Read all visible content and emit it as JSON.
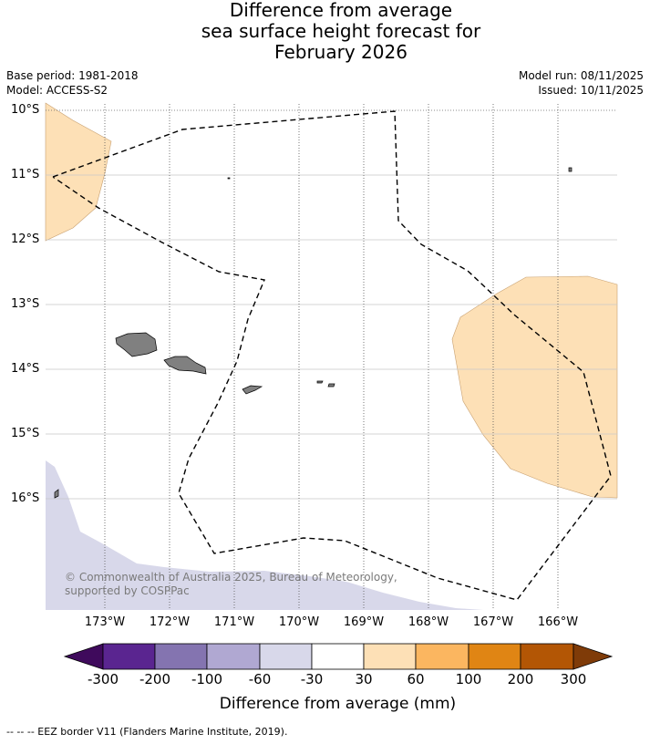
{
  "title": {
    "line1": "Difference from average",
    "line2": "sea surface height forecast for",
    "line3": "February 2026"
  },
  "meta": {
    "base_period": "Base period: 1981-2018",
    "model": "Model: ACCESS-S2",
    "model_run": "Model run: 08/11/2025",
    "issued": "Issued: 10/11/2025"
  },
  "map": {
    "lat_labels": [
      "10°S",
      "11°S",
      "12°S",
      "13°S",
      "14°S",
      "15°S",
      "16°S"
    ],
    "lon_labels": [
      "173°W",
      "172°W",
      "171°W",
      "170°W",
      "169°W",
      "168°W",
      "167°W",
      "166°W"
    ],
    "copyright": "© Commonwealth of Australia 2025, Bureau of Meteorology, supported by COSPPac",
    "land_color": "#808080",
    "colors_used": {
      "positive_30_60": "#fde0b6",
      "negative_30_60": "#d8d8ea"
    }
  },
  "colorbar": {
    "title": "Difference from average (mm)",
    "ticks": [
      "-300",
      "-200",
      "-100",
      "-60",
      "-30",
      "30",
      "60",
      "100",
      "200",
      "300"
    ],
    "colors": [
      "#3f0a5c",
      "#5a2590",
      "#8474b0",
      "#b0a8d2",
      "#d8d8ea",
      "#ffffff",
      "#fde0b6",
      "#fbb660",
      "#e08514",
      "#b35605",
      "#7f3b08"
    ]
  },
  "footnote": "--  --  -- EEZ border V11 (Flanders Marine Institute, 2019)."
}
